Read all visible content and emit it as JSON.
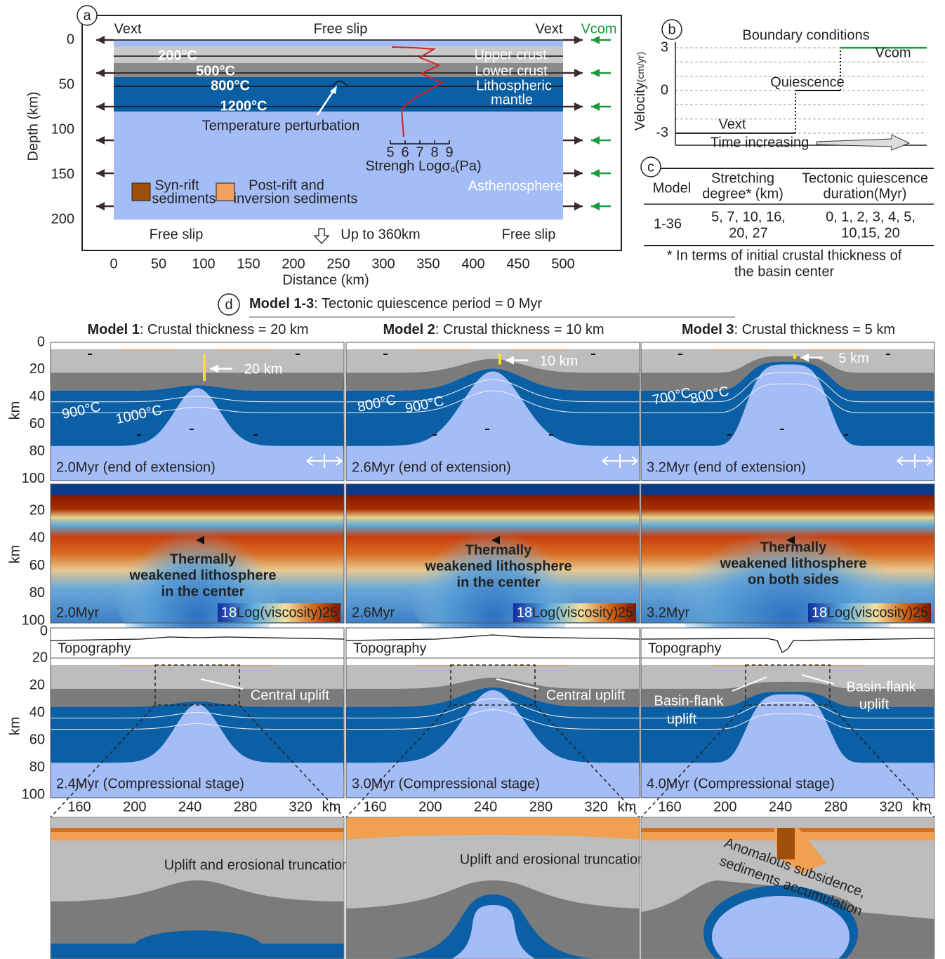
{
  "panel_a": {
    "label": "a",
    "top_left": "Vext",
    "top_center": "Free slip",
    "top_right": "Vext",
    "top_right_green": "Vcom",
    "y_axis_label": "Depth (km)",
    "yticks": [
      0,
      50,
      100,
      150,
      200
    ],
    "x_axis_label": "Distance (km)",
    "xticks": [
      0,
      50,
      100,
      150,
      200,
      250,
      300,
      350,
      400,
      450,
      500
    ],
    "isotherms": [
      "200°C",
      "500°C",
      "800°C",
      "1200°C"
    ],
    "layers": [
      "Upper crust",
      "Lower crust",
      "Lithospheric",
      "mantle",
      "Asthenosphere"
    ],
    "perturbation": "Temperature perturbation",
    "strength_ticks": [
      5,
      6,
      7,
      8,
      9
    ],
    "strength_label": {
      "text": "Strengh Logσ",
      "sub": "d",
      "unit": "(Pa)"
    },
    "legend": [
      {
        "line1": "Syn-rift",
        "line2": "sediments"
      },
      {
        "line1": "Post-rift and",
        "line2": "inversion sediments"
      }
    ],
    "bottom_left": "Free slip",
    "bottom_center": "Up to 360km",
    "bottom_right": "Free slip"
  },
  "panel_b": {
    "label": "b",
    "title": "Boundary conditions",
    "y_axis_label": "Velocity",
    "y_axis_unit": "(cm/yr)",
    "yticks": [
      3,
      0,
      -3
    ],
    "vcom": "Vcom",
    "quiescence": "Quiescence",
    "vext": "Vext",
    "x_axis_label": "Time increasing"
  },
  "panel_c": {
    "label": "c",
    "header": [
      [
        "Model"
      ],
      [
        "Stretching",
        "degree* (km)"
      ],
      [
        "Tectonic quiescence",
        "duration(Myr)"
      ]
    ],
    "rows": [
      [
        [
          "1-36"
        ],
        [
          "5, 7, 10, 16,",
          "20, 27"
        ],
        [
          "0, 1, 2, 3, 4, 5,",
          "10,15, 20"
        ]
      ]
    ],
    "footnote": [
      "* In terms of initial crustal thickness of",
      "the basin center"
    ]
  },
  "panel_d": {
    "label": "d",
    "title_bold": "Model 1-3",
    "title_rest": ": Tectonic quiescence period = 0 Myr",
    "axis_unit": "km",
    "row1_yticks": [
      0,
      20,
      40,
      60,
      80,
      100
    ],
    "row2_yticks": [
      20,
      40,
      60,
      80,
      100
    ],
    "row3_topo_ticks": [
      0,
      20
    ],
    "row3_yticks": [
      20,
      40,
      60,
      80,
      100
    ],
    "row3_xticks": [
      160,
      200,
      240,
      280,
      320
    ],
    "colorbar": {
      "min": 18,
      "label": "Log(viscosity)",
      "max": 25
    },
    "topography_label": "Topography",
    "columns": [
      {
        "title_bold": "Model 1",
        "title_rest": ": Crustal thickness = 20 km",
        "thickness_label": "20 km",
        "isotherms": [
          "900°C",
          "1000°C"
        ],
        "time1": "2.0Myr (end of extension)",
        "time2": "2.0Myr",
        "weakness": [
          "Thermally",
          "weakened lithosphere",
          "in the center"
        ],
        "time3": "2.4Myr (Compressional stage)",
        "uplift": [
          [
            "Central uplift"
          ]
        ],
        "zoom": [
          "Uplift and erosional truncation"
        ]
      },
      {
        "title_bold": "Model 2",
        "title_rest": ": Crustal thickness = 10 km",
        "thickness_label": "10 km",
        "isotherms": [
          "800°C",
          "900°C"
        ],
        "time1": "2.6Myr (end of extension)",
        "time2": "2.6Myr",
        "weakness": [
          "Thermally",
          "weakened lithosphere",
          "in the center"
        ],
        "time3": "3.0Myr (Compressional stage)",
        "uplift": [
          [
            "Central uplift"
          ]
        ],
        "zoom": [
          "Uplift and erosional truncation"
        ]
      },
      {
        "title_bold": "Model 3",
        "title_rest": ": Crustal thickness = 5 km",
        "thickness_label": "5 km",
        "isotherms": [
          "700°C",
          "800°C"
        ],
        "time1": "3.2Myr (end of extension)",
        "time2": "3.2Myr",
        "weakness": [
          "Thermally",
          "weakened lithosphere",
          "on both sides"
        ],
        "time3": "4.0Myr (Compressional stage)",
        "uplift": [
          [
            "Basin-flank",
            "uplift"
          ],
          [
            "Basin-flank",
            "uplift"
          ]
        ],
        "zoom": [
          "Anomalous subsidence,",
          "sediments accumulation"
        ]
      }
    ]
  }
}
